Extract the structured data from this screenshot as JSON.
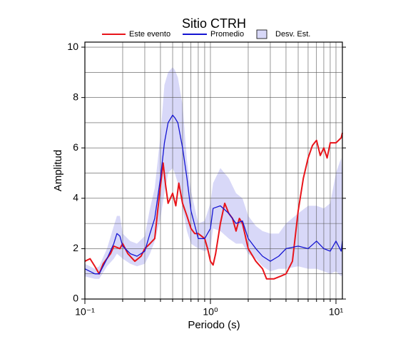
{
  "chart_data": {
    "type": "line",
    "title": "Sitio CTRH",
    "xlabel": "Periodo (s)",
    "ylabel": "Amplitud",
    "xscale": "log",
    "xlim": [
      0.1,
      11.25
    ],
    "ylim": [
      0,
      10.2
    ],
    "xticks": [
      {
        "value": 0.1,
        "label": "10⁻¹"
      },
      {
        "value": 1,
        "label": "10⁰"
      },
      {
        "value": 10,
        "label": "10¹"
      }
    ],
    "xminorticks": [
      0.2,
      0.3,
      0.4,
      0.5,
      0.6,
      0.7,
      0.8,
      0.9,
      2,
      3,
      4,
      5,
      6,
      7,
      8,
      9
    ],
    "yticks": [
      0,
      2,
      4,
      6,
      8,
      10
    ],
    "yminorticks": [
      1,
      3,
      5,
      7,
      9
    ],
    "grid": true,
    "series": [
      {
        "name": "Este evento",
        "color": "#e8141a",
        "x": [
          0.1,
          0.11,
          0.12,
          0.13,
          0.14,
          0.16,
          0.17,
          0.19,
          0.2,
          0.22,
          0.25,
          0.28,
          0.3,
          0.33,
          0.36,
          0.38,
          0.4,
          0.42,
          0.44,
          0.46,
          0.48,
          0.5,
          0.53,
          0.56,
          0.6,
          0.65,
          0.7,
          0.75,
          0.8,
          0.9,
          0.95,
          1.0,
          1.05,
          1.1,
          1.2,
          1.3,
          1.4,
          1.5,
          1.6,
          1.7,
          1.8,
          2.0,
          2.3,
          2.6,
          2.8,
          3.2,
          3.6,
          4.0,
          4.5,
          5.0,
          5.5,
          6.0,
          6.5,
          7.0,
          7.5,
          8,
          8.5,
          9,
          10,
          11,
          11.25
        ],
        "values": [
          1.5,
          1.6,
          1.3,
          1.0,
          1.4,
          1.8,
          2.1,
          2.0,
          2.2,
          1.8,
          1.5,
          1.7,
          2.0,
          2.2,
          2.4,
          3.5,
          4.5,
          5.4,
          4.5,
          3.8,
          4.0,
          4.2,
          3.7,
          4.6,
          3.8,
          3.3,
          2.8,
          2.6,
          2.6,
          2.4,
          2.0,
          1.5,
          1.35,
          1.8,
          3.0,
          3.8,
          3.4,
          3.2,
          2.7,
          3.2,
          3.0,
          2.0,
          1.5,
          1.2,
          0.8,
          0.8,
          0.9,
          1.0,
          1.5,
          3.5,
          4.8,
          5.6,
          6.1,
          6.3,
          5.7,
          6.0,
          5.6,
          6.2,
          6.2,
          6.4,
          6.6
        ]
      },
      {
        "name": "Promedio",
        "color": "#1414d2",
        "x": [
          0.1,
          0.12,
          0.13,
          0.15,
          0.17,
          0.18,
          0.19,
          0.2,
          0.23,
          0.26,
          0.3,
          0.33,
          0.36,
          0.4,
          0.43,
          0.46,
          0.5,
          0.52,
          0.55,
          0.6,
          0.65,
          0.7,
          0.8,
          0.9,
          1.0,
          1.05,
          1.2,
          1.4,
          1.6,
          1.8,
          2.0,
          2.3,
          2.6,
          3.0,
          3.5,
          4.0,
          5,
          6,
          7,
          8,
          9,
          10,
          11,
          11.25
        ],
        "values": [
          1.2,
          1.0,
          1.0,
          1.6,
          2.2,
          2.6,
          2.5,
          2.1,
          1.8,
          1.7,
          1.9,
          2.6,
          3.2,
          4.8,
          6.2,
          7.0,
          7.3,
          7.2,
          7.0,
          6.0,
          4.8,
          3.5,
          2.4,
          2.4,
          2.8,
          3.6,
          3.7,
          3.4,
          3.0,
          3.1,
          2.4,
          2.0,
          1.7,
          1.5,
          1.7,
          2.0,
          2.1,
          2.0,
          2.3,
          2.0,
          1.9,
          2.3,
          1.9,
          2.3
        ]
      }
    ],
    "band": {
      "name": "Desv. Est.",
      "color": "#d8d8f8",
      "x": [
        0.1,
        0.12,
        0.13,
        0.15,
        0.17,
        0.18,
        0.19,
        0.2,
        0.23,
        0.26,
        0.3,
        0.33,
        0.36,
        0.4,
        0.43,
        0.46,
        0.5,
        0.52,
        0.55,
        0.6,
        0.65,
        0.7,
        0.8,
        0.9,
        1.0,
        1.05,
        1.2,
        1.4,
        1.6,
        1.8,
        2.0,
        2.3,
        2.6,
        3.0,
        3.5,
        4.0,
        5,
        6,
        7,
        8,
        9,
        10,
        11,
        11.25
      ],
      "upper": [
        1.4,
        1.2,
        1.3,
        2.0,
        2.9,
        3.3,
        3.3,
        2.6,
        2.3,
        2.2,
        2.5,
        3.6,
        4.4,
        6.5,
        8.5,
        9.0,
        9.2,
        9.1,
        8.8,
        7.7,
        5.5,
        4.3,
        3.0,
        3.1,
        3.8,
        4.6,
        5.2,
        4.8,
        4.2,
        4.0,
        3.3,
        2.9,
        2.7,
        2.6,
        2.6,
        3.0,
        3.4,
        3.7,
        3.7,
        3.6,
        3.8,
        5.0,
        5.6,
        4.8
      ],
      "lower": [
        0.9,
        0.8,
        0.8,
        1.3,
        1.6,
        1.8,
        1.7,
        1.6,
        1.4,
        1.3,
        1.4,
        1.8,
        2.3,
        3.2,
        4.2,
        5.0,
        5.2,
        5.0,
        4.6,
        3.6,
        2.7,
        2.2,
        2.0,
        1.9,
        2.0,
        2.8,
        2.7,
        2.4,
        2.2,
        2.2,
        1.8,
        1.6,
        1.3,
        1.1,
        1.2,
        1.2,
        1.3,
        1.2,
        1.2,
        1.1,
        1.0,
        1.1,
        0.9,
        1.0
      ]
    }
  }
}
